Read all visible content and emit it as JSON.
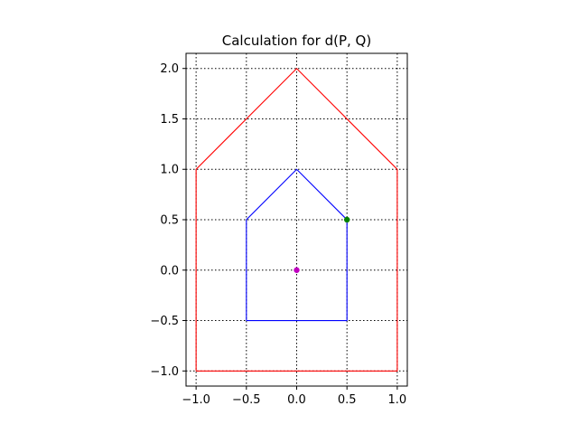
{
  "chart_data": {
    "type": "line",
    "title": "Calculation for d(P, Q)",
    "xlabel": "",
    "ylabel": "",
    "xlim": [
      -1.1,
      1.1
    ],
    "ylim": [
      -1.15,
      2.15
    ],
    "grid": true,
    "grid_style": "dotted",
    "x_ticks": [
      -1.0,
      -0.5,
      0.0,
      0.5,
      1.0
    ],
    "x_tick_labels": [
      "−1.0",
      "−0.5",
      "0.0",
      "0.5",
      "1.0"
    ],
    "y_ticks": [
      -1.0,
      -0.5,
      0.0,
      0.5,
      1.0,
      1.5,
      2.0
    ],
    "y_tick_labels": [
      "−1.0",
      "−0.5",
      "0.0",
      "0.5",
      "1.0",
      "1.5",
      "2.0"
    ],
    "series": [
      {
        "kind": "polygon",
        "color": "#ff0000",
        "points": [
          [
            -1,
            -1
          ],
          [
            1,
            -1
          ],
          [
            1,
            1
          ],
          [
            0,
            2
          ],
          [
            -1,
            1
          ],
          [
            -1,
            -1
          ]
        ]
      },
      {
        "kind": "polygon",
        "color": "#0000ff",
        "points": [
          [
            -0.5,
            -0.5
          ],
          [
            0.5,
            -0.5
          ],
          [
            0.5,
            0.5
          ],
          [
            0,
            1
          ],
          [
            -0.5,
            0.5
          ],
          [
            -0.5,
            -0.5
          ]
        ]
      }
    ],
    "points": [
      {
        "kind": "marker",
        "color": "#bf00bf",
        "x": 0.0,
        "y": 0.0
      },
      {
        "kind": "marker",
        "color": "#008000",
        "x": 0.5,
        "y": 0.5
      }
    ]
  }
}
